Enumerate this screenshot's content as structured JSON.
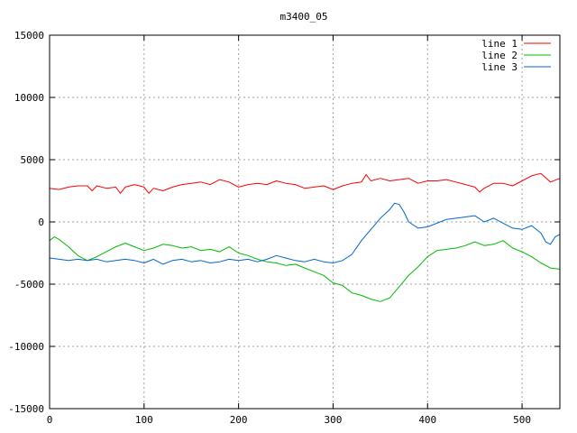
{
  "chart_data": {
    "type": "line",
    "title": "m3400_05",
    "xlabel": "",
    "ylabel": "",
    "xlim": [
      0,
      540
    ],
    "ylim": [
      -15000,
      15000
    ],
    "xticks": [
      0,
      100,
      200,
      300,
      400,
      500
    ],
    "yticks": [
      -15000,
      -10000,
      -5000,
      0,
      5000,
      10000,
      15000
    ],
    "grid": true,
    "legend_position": "top-right",
    "series": [
      {
        "name": "line 1",
        "color": "#ff0000",
        "x": [
          0,
          10,
          20,
          30,
          40,
          45,
          50,
          60,
          70,
          75,
          80,
          90,
          100,
          105,
          110,
          120,
          130,
          140,
          150,
          160,
          170,
          180,
          190,
          200,
          210,
          220,
          230,
          240,
          250,
          260,
          270,
          280,
          290,
          300,
          310,
          320,
          330,
          335,
          340,
          350,
          360,
          370,
          380,
          390,
          400,
          410,
          420,
          430,
          440,
          450,
          455,
          460,
          470,
          480,
          490,
          500,
          510,
          520,
          530,
          540
        ],
        "y": [
          2700,
          2600,
          2800,
          2900,
          2900,
          2500,
          2900,
          2700,
          2800,
          2300,
          2800,
          3000,
          2800,
          2300,
          2700,
          2500,
          2800,
          3000,
          3100,
          3200,
          3000,
          3400,
          3200,
          2800,
          3000,
          3100,
          3000,
          3300,
          3100,
          3000,
          2700,
          2800,
          2900,
          2600,
          2900,
          3100,
          3200,
          3800,
          3300,
          3500,
          3300,
          3400,
          3500,
          3100,
          3300,
          3300,
          3400,
          3200,
          3000,
          2800,
          2400,
          2700,
          3100,
          3100,
          2900,
          3300,
          3700,
          3900,
          3200,
          3500
        ]
      },
      {
        "name": "line 2",
        "color": "#00bb00",
        "x": [
          0,
          5,
          10,
          20,
          30,
          40,
          50,
          60,
          70,
          80,
          90,
          100,
          110,
          120,
          130,
          140,
          150,
          160,
          170,
          180,
          190,
          200,
          210,
          220,
          230,
          240,
          250,
          260,
          270,
          280,
          290,
          300,
          310,
          320,
          330,
          340,
          350,
          360,
          370,
          380,
          390,
          400,
          410,
          420,
          430,
          440,
          450,
          460,
          470,
          480,
          490,
          500,
          510,
          520,
          530,
          540
        ],
        "y": [
          -1500,
          -1200,
          -1400,
          -2000,
          -2700,
          -3100,
          -2800,
          -2400,
          -2000,
          -1700,
          -2000,
          -2300,
          -2100,
          -1800,
          -1900,
          -2100,
          -2000,
          -2300,
          -2200,
          -2400,
          -2000,
          -2500,
          -2700,
          -3000,
          -3200,
          -3300,
          -3500,
          -3400,
          -3700,
          -4000,
          -4300,
          -4900,
          -5100,
          -5700,
          -5900,
          -6200,
          -6400,
          -6100,
          -5200,
          -4300,
          -3600,
          -2800,
          -2300,
          -2200,
          -2100,
          -1900,
          -1600,
          -1900,
          -1800,
          -1500,
          -2100,
          -2400,
          -2800,
          -3300,
          -3700,
          -3800
        ]
      },
      {
        "name": "line 3",
        "color": "#0066cc",
        "x": [
          0,
          10,
          20,
          30,
          40,
          50,
          60,
          70,
          80,
          90,
          100,
          110,
          120,
          130,
          140,
          150,
          160,
          170,
          180,
          190,
          200,
          210,
          220,
          230,
          240,
          250,
          260,
          270,
          280,
          290,
          300,
          310,
          320,
          330,
          340,
          350,
          360,
          365,
          370,
          375,
          380,
          390,
          400,
          410,
          420,
          430,
          440,
          450,
          460,
          470,
          480,
          490,
          500,
          510,
          520,
          525,
          530,
          535,
          540
        ],
        "y": [
          -2900,
          -3000,
          -3100,
          -3000,
          -3100,
          -3000,
          -3200,
          -3100,
          -3000,
          -3100,
          -3300,
          -3000,
          -3400,
          -3100,
          -3000,
          -3200,
          -3100,
          -3300,
          -3200,
          -3000,
          -3100,
          -3000,
          -3200,
          -3000,
          -2700,
          -2900,
          -3100,
          -3200,
          -3000,
          -3200,
          -3300,
          -3100,
          -2600,
          -1500,
          -600,
          300,
          1000,
          1500,
          1400,
          800,
          0,
          -500,
          -400,
          -100,
          200,
          300,
          400,
          500,
          0,
          300,
          -100,
          -500,
          -600,
          -300,
          -900,
          -1600,
          -1800,
          -1200,
          -1000
        ]
      }
    ]
  }
}
